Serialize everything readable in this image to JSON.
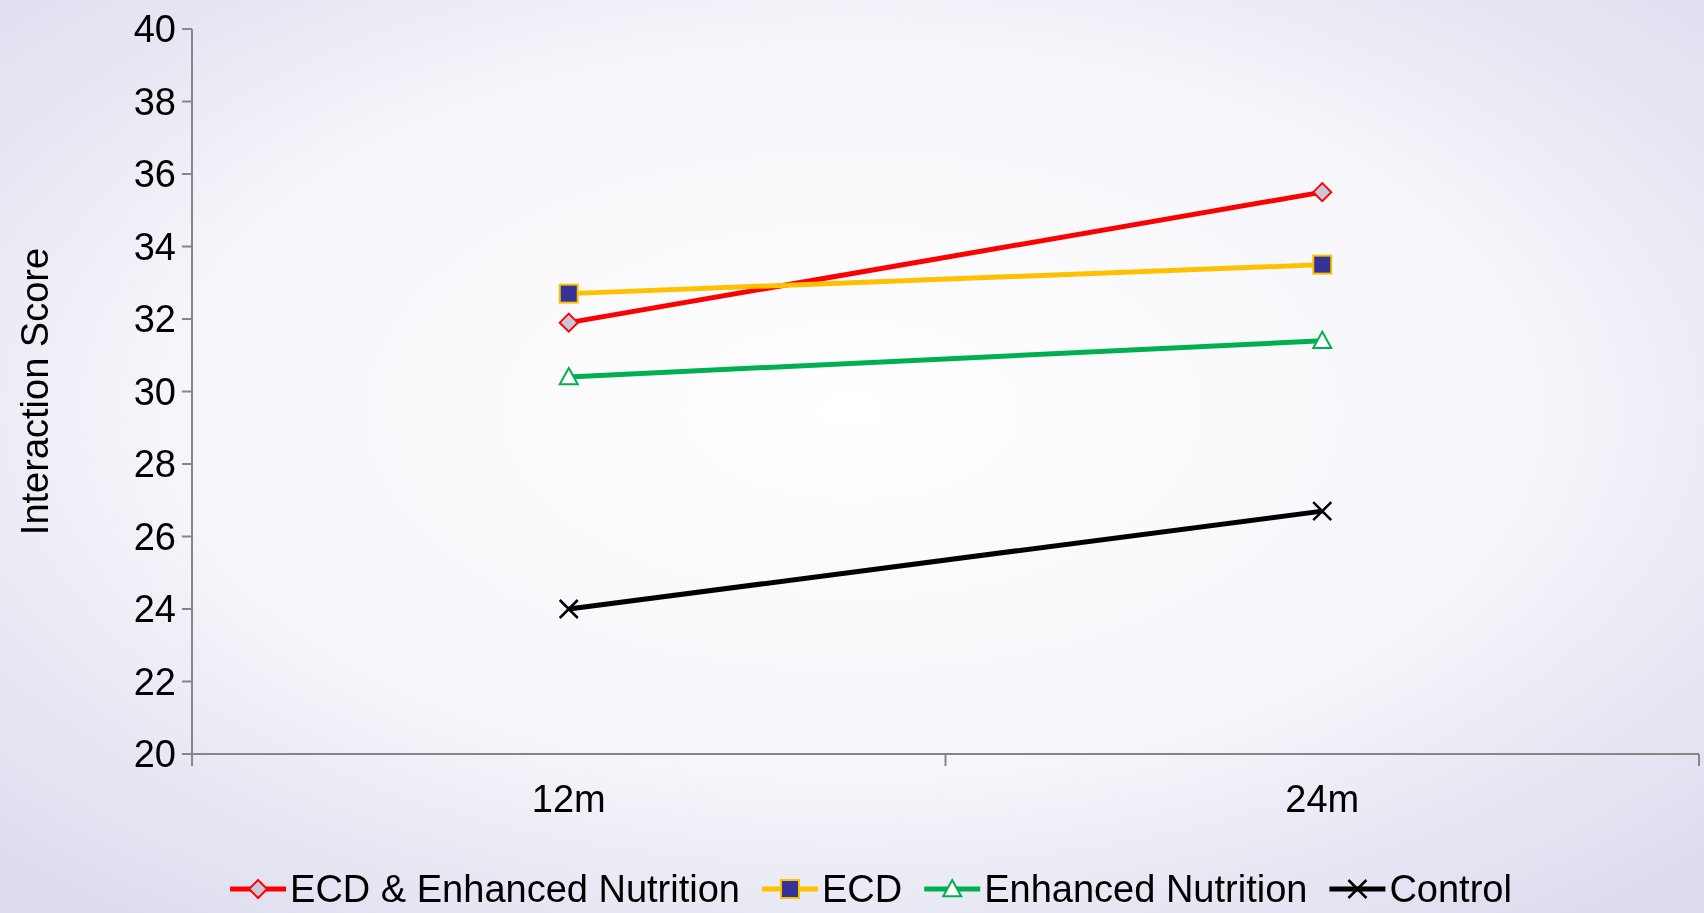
{
  "chart_data": {
    "type": "line",
    "ylabel": "Interaction Score",
    "categories": [
      "12m",
      "24m"
    ],
    "ylim": [
      20,
      40
    ],
    "yticks": [
      20,
      22,
      24,
      26,
      28,
      30,
      32,
      34,
      36,
      38,
      40
    ],
    "grid": false,
    "legend": "bottom",
    "line_style": "solid",
    "series": [
      {
        "name": "ECD & Enhanced Nutrition",
        "color": "#ff0000",
        "marker": "diamond",
        "values": [
          31.9,
          35.5
        ]
      },
      {
        "name": "ECD",
        "color": "#ffc000",
        "marker": "square",
        "values": [
          32.7,
          33.5
        ]
      },
      {
        "name": "Enhanced Nutrition",
        "color": "#00b050",
        "marker": "triangle",
        "values": [
          30.4,
          31.4
        ]
      },
      {
        "name": "Control",
        "color": "#000000",
        "marker": "cross",
        "values": [
          24.0,
          26.7
        ]
      }
    ]
  }
}
